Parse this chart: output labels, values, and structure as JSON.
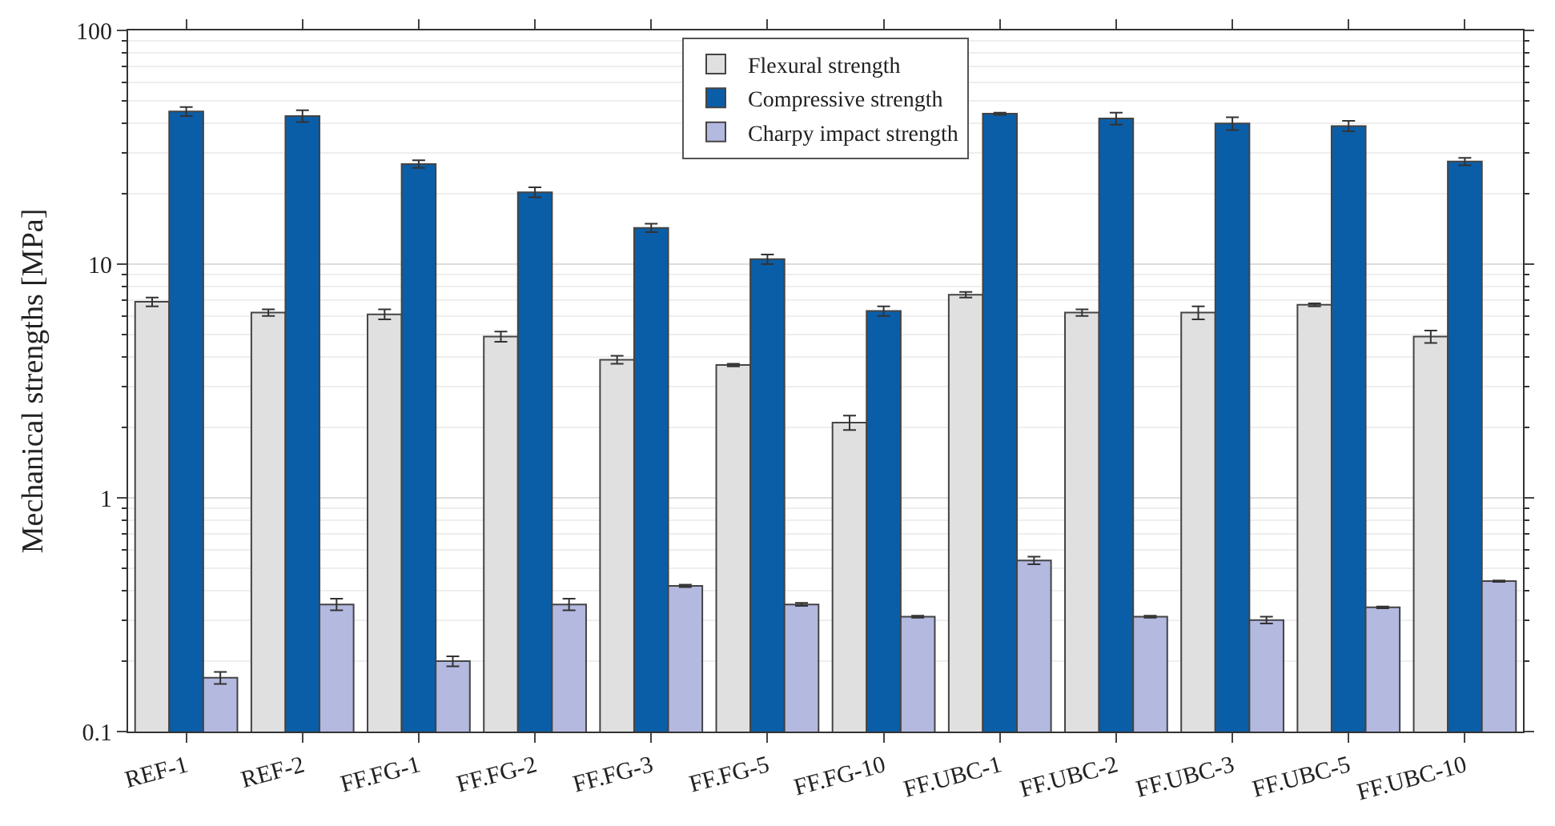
{
  "chart_data": {
    "type": "bar",
    "ylabel": "Mechanical strengths [MPa]",
    "categories": [
      "REF-1",
      "REF-2",
      "FF.FG-1",
      "FF.FG-2",
      "FF.FG-3",
      "FF.FG-5",
      "FF.FG-10",
      "FF.UBC-1",
      "FF.UBC-2",
      "FF.UBC-3",
      "FF.UBC-5",
      "FF.UBC-10"
    ],
    "series": [
      {
        "name": "Flexural strength",
        "color": "#e0e0e0",
        "values": [
          6.9,
          6.2,
          6.1,
          4.9,
          3.9,
          3.7,
          2.1,
          7.4,
          6.2,
          6.2,
          6.7,
          4.9
        ],
        "errors": [
          0.3,
          0.2,
          0.3,
          0.25,
          0.15,
          0.05,
          0.15,
          0.2,
          0.2,
          0.4,
          0.1,
          0.3
        ]
      },
      {
        "name": "Compressive strength",
        "color": "#0a5ea8",
        "values": [
          45,
          43,
          26.8,
          20.3,
          14.3,
          10.5,
          6.3,
          44,
          42,
          40,
          39,
          27.5
        ],
        "errors": [
          2,
          2.5,
          1,
          1,
          0.6,
          0.5,
          0.3,
          0.5,
          2.5,
          2.5,
          2,
          1
        ]
      },
      {
        "name": "Charpy impact strength",
        "color": "#b4b9e0",
        "values": [
          0.17,
          0.35,
          0.2,
          0.35,
          0.42,
          0.35,
          0.31,
          0.54,
          0.31,
          0.3,
          0.34,
          0.44
        ],
        "errors": [
          0.01,
          0.02,
          0.01,
          0.02,
          0.005,
          0.005,
          0.003,
          0.02,
          0.003,
          0.01,
          0.003,
          0.003
        ]
      }
    ],
    "log": "y",
    "ylim": [
      0.1,
      100
    ],
    "yticks": [
      0.1,
      1,
      10,
      100
    ],
    "grid": "y",
    "legend": "top"
  }
}
